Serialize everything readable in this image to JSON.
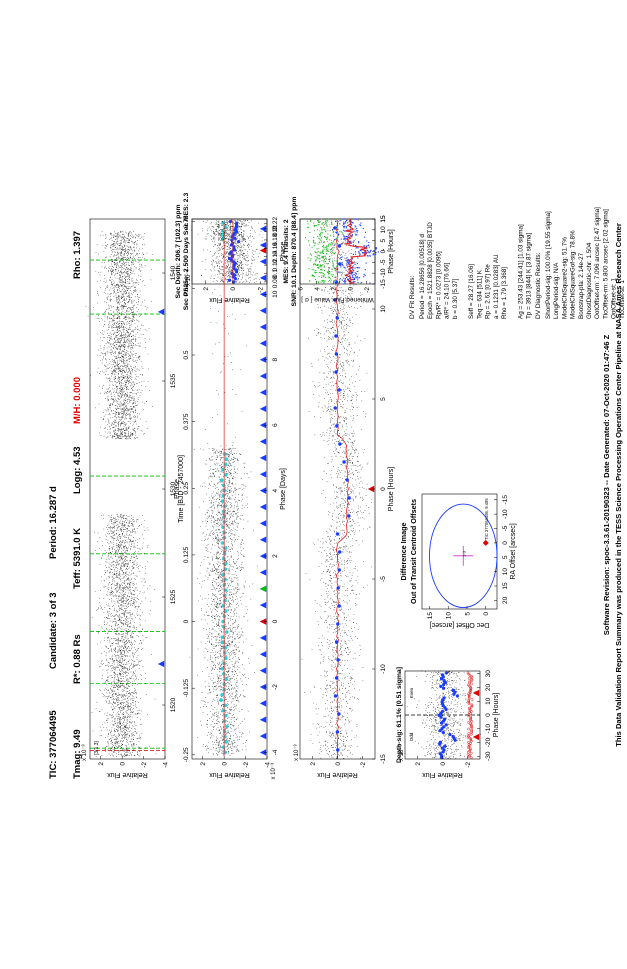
{
  "header": {
    "tic": "TIC: 377064495",
    "candidate": "Candidate: 3 of 3",
    "period": "Period: 16.287 d",
    "tmag": "Tmag: 9.49",
    "rstar": "R*: 0.88 Rs",
    "teff": "Teff: 5391.0 K",
    "logg": "Logg: 4.53",
    "mh": "M/H: 0.000",
    "rho": "Rho: 1.397"
  },
  "colors": {
    "accent_red": "#e00000",
    "transit_green": "#00c000",
    "binned_blue": "#1a3cff",
    "fold_cyan": "#22d4e0",
    "model_red": "#e02020"
  },
  "panels": {
    "full_lc": {
      "ylabel": "Relative Flux",
      "yexp": "x 10⁻³",
      "yticks": [
        "2",
        "0",
        "-2",
        "-4"
      ],
      "xticks": [
        "1520",
        "1525",
        "1530",
        "1535",
        "1540"
      ],
      "xlabel": "Time [BJD - 2457000]",
      "corner": "[3/1.3]"
    },
    "phase_full": {
      "ylabel": "Relative Flux",
      "yexp": "x 10⁻³",
      "yticks": [
        "2",
        "0",
        "-2",
        "-4"
      ],
      "phase_ticks": [
        "-0.25",
        "-0.125",
        "0",
        "0.125",
        "0.25",
        "0.375",
        "0.5",
        "0.625",
        "0.75"
      ],
      "phase_label": "Phase",
      "day_ticks": [
        "-4",
        "-2",
        "0",
        "2",
        "4",
        "6",
        "8",
        "10",
        "12"
      ],
      "day_label": "Phase [Days]"
    },
    "secondary": {
      "title1": "Sec Depth: 206.7 [102.3] ppm",
      "title2": "Sec Phase: 2.500 Days   Sec MES: 2.3",
      "ylabel": "Relative Flux",
      "yexp": "x 10⁻³",
      "yticks": [
        "2",
        "0",
        "-2"
      ],
      "xticks": [
        "0.08",
        "0.1",
        "0.12",
        "0.14",
        "0.16",
        "0.18",
        "0.2",
        "0.22"
      ],
      "xlabel": "Phase"
    },
    "phase_zoom": {
      "ylabel": "Relative Flux",
      "yexp": "x 10⁻³",
      "yticks": [
        "2",
        "0",
        "-2"
      ],
      "xticks": [
        "-15",
        "-10",
        "-5",
        "0",
        "5",
        "10",
        "15"
      ],
      "xlabel": "Phase [Hours]"
    },
    "whitened": {
      "title1": "MES: 9.4   Transits: 2",
      "title2": "SNR: 10.1   Depth: 870.4 [88.4] ppm",
      "ylabel": "Whitened Flux Value [ σ ]",
      "yticks": [
        "6",
        "4",
        "2",
        "0",
        "-2"
      ],
      "xticks": [
        "-15",
        "-10",
        "-5",
        "0",
        "5",
        "10",
        "15"
      ],
      "xlabel": "Phase [Hours]"
    },
    "oddeven": {
      "title": "Depth-sig: 61.1% [0.51 sigma]",
      "ylabel": "Relative Flux",
      "yexp": "x 10⁻³",
      "yticks": [
        "2",
        "0",
        "-2"
      ],
      "xticks": [
        "-30",
        "-20",
        "-10",
        "0",
        "10",
        "20",
        "30"
      ],
      "xlabel": "Phase [Hours]",
      "odd": "Odd",
      "even": "Even"
    },
    "diffimage": {
      "title1": "Difference Image",
      "title2": "Out of Transit Centroid Offsets",
      "ylabel": "Dec Offset [arcsec]",
      "xlabel": "RA Offset [arcsec]",
      "yticks": [
        "15",
        "10",
        "5",
        "0"
      ],
      "xticks": [
        "20",
        "15",
        "10",
        "5",
        "0",
        "-5",
        "-10",
        "-15"
      ],
      "star_label": "TIC 377064495, 9.495"
    }
  },
  "fit_results": {
    "title": "DV Fit Results:",
    "lines": [
      "Period = 16.28656 [0.00518] d",
      "Epoch = 1521.8828 [0.0035] BTJD",
      "Rp/R* = 0.0273 [0.0095]",
      "a/R* = 24.10 [76.66]",
      "b = 0.30 [5.37]",
      "",
      "Seff = 28.27 [16.06]",
      "Teq = 634 [511] K",
      "Rp = 2.61 [0.97] Re",
      "a = 0.1231 [0.0283] AU",
      "Rho = 1.79 [3.368]",
      "",
      "Ag = 253.43 [244.41] [1.03 sigma]",
      "Tp = 3913 [844] K [3.87 sigma]"
    ]
  },
  "diagnostics": {
    "title": "DV Diagnostic Results:",
    "lines": [
      "ShortPeriod-sig: 100.0% [19.55 sigma]",
      "LongPeriod-sig: N/A",
      "ModelChiSquare2-sig: 51.7%",
      "ModelChiSquareGof-sig: 78.8%",
      "Bootstrap-pfa: 2.14e-27",
      "GhostDiagnostic-chr: 1.504",
      "OotOffset-rm: 7.096 arcsec [2.47 sigma]",
      "TicOffset-rm: 5.800 arcsec [2.02 sigma]",
      "OotOffset-st: 1",
      "TicOffset-st: 1",
      "DiffImageQuality-fgm: 1.00 [1/1]",
      "DiffImageOverlap-fno: 0.00 [0/1]"
    ]
  },
  "footer": {
    "line1": "Software Revision: spoc-3.3.61-20190323   --   Date Generated: 07-Oct-2020 01:47:46 Z",
    "line2": "This Data Validation Report Summary was produced in the TESS Science Processing Operations Center Pipeline at NASA Ames Research Center"
  },
  "chart_data": [
    {
      "type": "scatter",
      "name": "full_lc",
      "ylim": [
        -4,
        3
      ],
      "xlim": [
        1517.5,
        1542.5
      ],
      "transit_times": [
        1521.88,
        1538.17
      ],
      "segments": [
        [
          1517.6,
          1528.8
        ],
        [
          1532.3,
          1541.9
        ]
      ],
      "green_lines": [
        1518,
        1521.0,
        1523.4,
        1527.0,
        1530.6,
        1538.1,
        1540.6
      ],
      "blue_triangles": [
        1521.9,
        1538.2
      ]
    },
    {
      "type": "scatter",
      "name": "phase_full",
      "ylim": [
        -4,
        3
      ],
      "xlim": [
        -4.2,
        12.3
      ]
    },
    {
      "type": "scatter",
      "name": "secondary",
      "ylim": [
        -2.5,
        3
      ],
      "xlim": [
        0.075,
        0.23
      ]
    },
    {
      "type": "scatter",
      "name": "phase_zoom",
      "ylim": [
        -3,
        3
      ],
      "xlim": [
        -15,
        15
      ]
    },
    {
      "type": "scatter",
      "name": "whitened",
      "ylim": [
        -3,
        6
      ],
      "xlim": [
        -15,
        15
      ]
    },
    {
      "type": "scatter",
      "name": "oddeven",
      "ylim": [
        -3,
        3
      ],
      "xlim": [
        -32,
        32
      ]
    }
  ]
}
